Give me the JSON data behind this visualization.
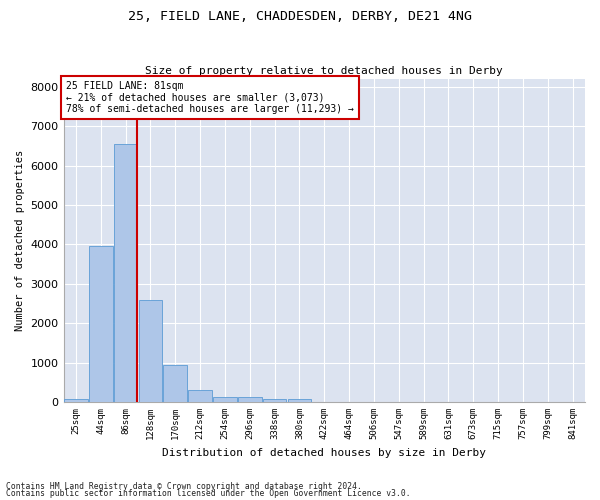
{
  "title1": "25, FIELD LANE, CHADDESDEN, DERBY, DE21 4NG",
  "title2": "Size of property relative to detached houses in Derby",
  "xlabel": "Distribution of detached houses by size in Derby",
  "ylabel": "Number of detached properties",
  "footer1": "Contains HM Land Registry data © Crown copyright and database right 2024.",
  "footer2": "Contains public sector information licensed under the Open Government Licence v3.0.",
  "annotation_title": "25 FIELD LANE: 81sqm",
  "annotation_line1": "← 21% of detached houses are smaller (3,073)",
  "annotation_line2": "78% of semi-detached houses are larger (11,293) →",
  "bar_color": "#aec6e8",
  "bar_edge_color": "#5b9bd5",
  "vertical_line_color": "#cc0000",
  "annotation_box_color": "#cc0000",
  "bg_color": "#dce3f0",
  "fig_color": "#ffffff",
  "grid_color": "#ffffff",
  "categories": [
    "25sqm",
    "44sqm",
    "86sqm",
    "128sqm",
    "170sqm",
    "212sqm",
    "254sqm",
    "296sqm",
    "338sqm",
    "380sqm",
    "422sqm",
    "464sqm",
    "506sqm",
    "547sqm",
    "589sqm",
    "631sqm",
    "673sqm",
    "715sqm",
    "757sqm",
    "799sqm",
    "841sqm"
  ],
  "values": [
    75,
    3950,
    6550,
    2600,
    950,
    300,
    125,
    125,
    90,
    75,
    0,
    0,
    0,
    0,
    0,
    0,
    0,
    0,
    0,
    0,
    0
  ],
  "ylim": [
    0,
    8200
  ],
  "yticks": [
    0,
    1000,
    2000,
    3000,
    4000,
    5000,
    6000,
    7000,
    8000
  ],
  "vline_x": 2.47
}
